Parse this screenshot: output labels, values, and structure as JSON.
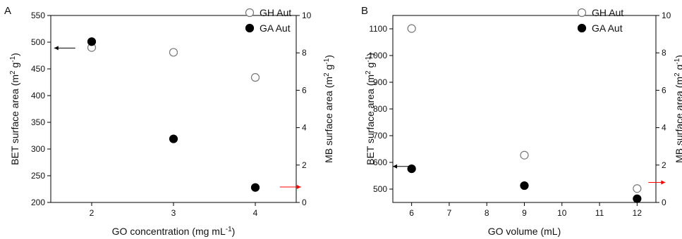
{
  "chart_data": [
    {
      "type": "scatter",
      "panel_label": "A",
      "xlabel": "GO concentration (mg mL",
      "xlabel_sup": "-1",
      "xlabel_end": ")",
      "ylabel_left": {
        "pre": "BET surface area (m",
        "sup1": "2",
        "mid": " g",
        "sup2": "-1",
        "end": ")"
      },
      "ylabel_right": {
        "pre": "MB surface area  (m",
        "sup1": "2",
        "mid": " g",
        "sup2": "-1",
        "end": ")"
      },
      "xlim": [
        1.5,
        4.5
      ],
      "xticks": [
        2,
        3,
        4
      ],
      "xtick_labels": [
        "2",
        "3",
        "4"
      ],
      "ylim_left": [
        200,
        550
      ],
      "yticks_left": [
        200,
        250,
        300,
        350,
        400,
        450,
        500,
        550
      ],
      "ytick_labels_left": [
        "200",
        "250",
        "300",
        "350",
        "400",
        "450",
        "500",
        "550"
      ],
      "ylim_right": [
        0,
        10
      ],
      "yticks_right": [
        0,
        2,
        4,
        6,
        8,
        10
      ],
      "ytick_labels_right": [
        "0",
        "2",
        "4",
        "6",
        "8",
        "10"
      ],
      "series": [
        {
          "name": "GH Aut",
          "marker": "open-circle",
          "axis": "left",
          "x": [
            2,
            3,
            4
          ],
          "y": [
            490,
            481,
            434
          ]
        },
        {
          "name": "GA Aut",
          "marker": "filled-circle",
          "axis": "right",
          "x": [
            2,
            3,
            4
          ],
          "y": [
            8.6,
            3.4,
            0.8
          ]
        }
      ],
      "arrows": [
        {
          "color": "#000000",
          "direction": "left",
          "x": 1.8,
          "y_left": 489
        },
        {
          "color": "#ff0000",
          "direction": "right",
          "x": 4.3,
          "y_left": 229
        }
      ],
      "legend_position": "top-right",
      "grid": false
    },
    {
      "type": "scatter",
      "panel_label": "B",
      "xlabel": "GO volume (mL)",
      "xlabel_sup": "",
      "xlabel_end": "",
      "ylabel_left": {
        "pre": "BET surface area (m",
        "sup1": "2",
        "mid": " g",
        "sup2": "-1",
        "end": ")"
      },
      "ylabel_right": {
        "pre": "MB surface area  (m",
        "sup1": "2",
        "mid": " g",
        "sup2": "-1",
        "end": ")"
      },
      "xlim": [
        5.5,
        12.5
      ],
      "xticks": [
        6,
        7,
        8,
        9,
        10,
        11,
        12
      ],
      "xtick_labels": [
        "6",
        "7",
        "8",
        "9",
        "10",
        "11",
        "12"
      ],
      "ylim_left": [
        450,
        1150
      ],
      "yticks_left": [
        500,
        600,
        700,
        800,
        900,
        1000,
        1100
      ],
      "ytick_labels_left": [
        "500",
        "600",
        "700",
        "800",
        "900",
        "1000",
        "1100"
      ],
      "ylim_right": [
        0,
        10
      ],
      "yticks_right": [
        0,
        2,
        4,
        6,
        8,
        10
      ],
      "ytick_labels_right": [
        "0",
        "2",
        "4",
        "6",
        "8",
        "10"
      ],
      "series": [
        {
          "name": "GH Aut",
          "marker": "open-circle",
          "axis": "left",
          "x": [
            6,
            9,
            12
          ],
          "y": [
            1101,
            627,
            502
          ]
        },
        {
          "name": "GA Aut",
          "marker": "filled-circle",
          "axis": "right",
          "x": [
            6,
            9,
            12
          ],
          "y": [
            1.8,
            0.9,
            0.2
          ]
        }
      ],
      "arrows": [
        {
          "color": "#000000",
          "direction": "left",
          "x": 5.95,
          "y_left": 585
        },
        {
          "color": "#ff0000",
          "direction": "right",
          "x": 12.3,
          "y_left": 525
        }
      ],
      "legend_position": "top-right",
      "grid": false
    }
  ]
}
